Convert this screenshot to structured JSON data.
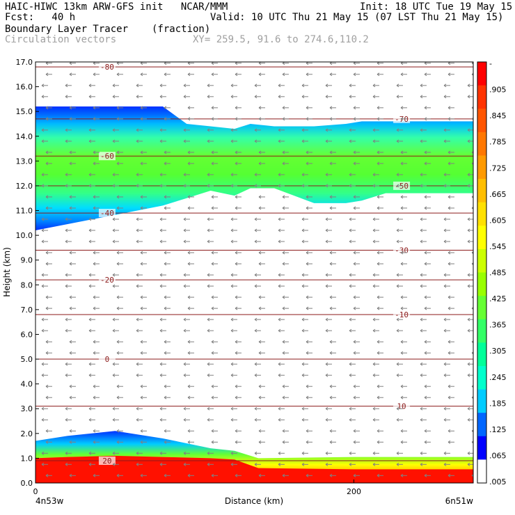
{
  "header": {
    "line1_left": "HAIC-HIWC 13km ARW-GFS init   NCAR/MMM",
    "line1_right": "Init: 18 UTC Tue 19 May 15",
    "fcst": "Fcst:   40 h",
    "valid": "Valid: 10 UTC Thu 21 May 15 (07 LST Thu 21 May 15)",
    "field": "Boundary Layer Tracer",
    "units": "(fraction)",
    "vectors": "Circulation vectors",
    "xy": "XY= 259.5, 91.6 to 274.6,110.2"
  },
  "chart_data": {
    "type": "heatmap",
    "ylabel": "Height (km)",
    "xlabel": "Distance (km)",
    "ylim": [
      0,
      17
    ],
    "xlim": [
      0,
      275
    ],
    "yticks": [
      "0.0",
      "1.0",
      "2.0",
      "3.0",
      "4.0",
      "5.0",
      "6.0",
      "7.0",
      "8.0",
      "9.0",
      "10.0",
      "11.0",
      "12.0",
      "13.0",
      "14.0",
      "15.0",
      "16.0",
      "17.0"
    ],
    "xticks": [
      {
        "value": 0,
        "label": "0"
      },
      {
        "value": 200,
        "label": "200"
      }
    ],
    "x_end_labels": [
      "4n53w",
      "6n51w"
    ],
    "colorbar_labels": [
      "-",
      ".905",
      ".845",
      ".785",
      ".725",
      ".665",
      ".605",
      ".545",
      ".485",
      ".425",
      ".365",
      ".305",
      ".245",
      ".185",
      ".125",
      ".065",
      ".005"
    ],
    "colorbar_colors": [
      "#ff0000",
      "#ff3300",
      "#ff5500",
      "#ff7700",
      "#ff9a00",
      "#ffbe00",
      "#ffe000",
      "#ffff00",
      "#ccff00",
      "#99ff00",
      "#66ff33",
      "#33ff66",
      "#00ff99",
      "#00ffcc",
      "#00ccff",
      "#0066ff",
      "#0000ff",
      "#ffffff"
    ],
    "contour_lines": [
      {
        "label": "-80",
        "y": 16.8
      },
      {
        "label": "-70",
        "y": 14.7
      },
      {
        "label": "-60",
        "y": 13.2
      },
      {
        "label": "-50",
        "y": 12.0
      },
      {
        "label": "-40",
        "y": 10.9
      },
      {
        "label": "-30",
        "y": 9.4
      },
      {
        "label": "-20",
        "y": 8.2
      },
      {
        "label": "-10",
        "y": 6.8
      },
      {
        "label": "0",
        "y": 5.0
      },
      {
        "label": "10",
        "y": 3.1
      },
      {
        "label": "20",
        "y": 0.9
      }
    ],
    "contour_line_color": "#8b1a1a",
    "vector_color": "#808080",
    "upper_layer": {
      "x": [
        0,
        40,
        80,
        95,
        110,
        125,
        135,
        150,
        175,
        195,
        205,
        220,
        240,
        275
      ],
      "top": [
        15.2,
        15.2,
        15.2,
        14.5,
        14.4,
        14.3,
        14.5,
        14.4,
        14.4,
        14.5,
        14.6,
        14.6,
        14.6,
        14.6
      ],
      "bottom": [
        10.2,
        10.7,
        11.2,
        11.5,
        11.8,
        11.6,
        11.9,
        11.9,
        11.3,
        11.3,
        11.4,
        11.7,
        11.7,
        11.7
      ]
    },
    "lower_layer": {
      "x": [
        0,
        20,
        50,
        80,
        110,
        125,
        140,
        200,
        275
      ],
      "top": [
        1.7,
        1.9,
        2.1,
        1.8,
        1.4,
        1.3,
        1.0,
        1.05,
        1.05
      ],
      "red_top": [
        1.0,
        1.05,
        1.1,
        1.05,
        1.0,
        0.95,
        0.6,
        0.55,
        0.55
      ]
    }
  }
}
